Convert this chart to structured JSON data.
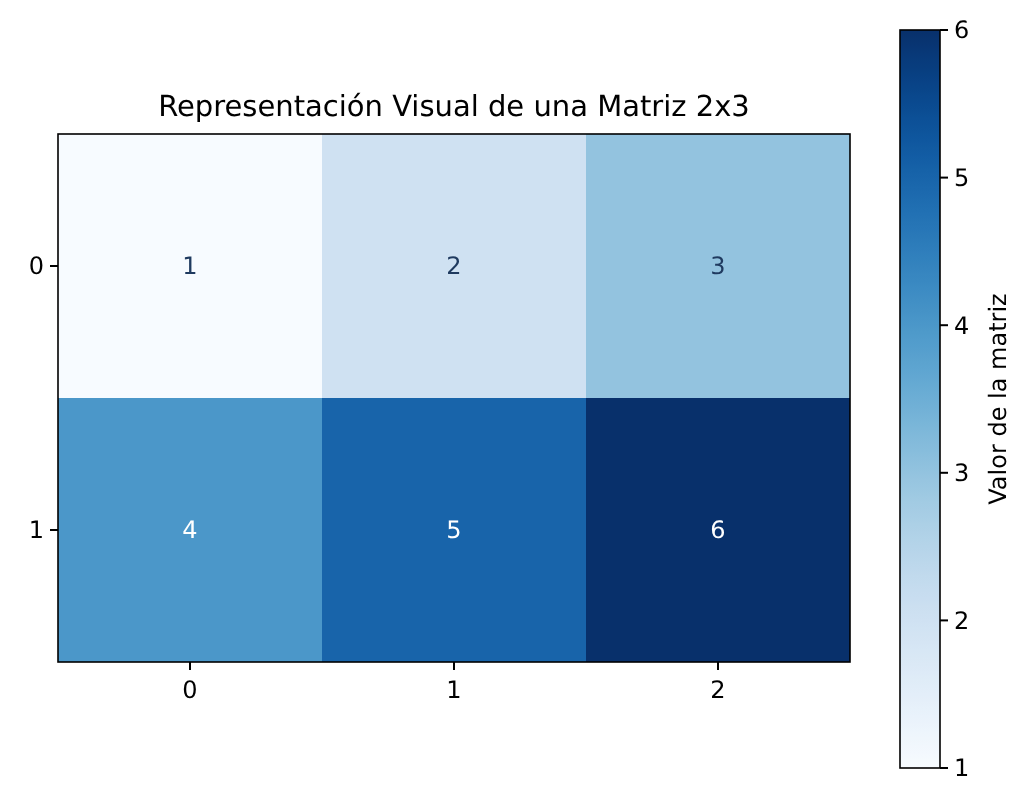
{
  "chart_data": {
    "type": "heatmap",
    "title": "Representación Visual de una Matriz 2x3",
    "clabel": "Valor de la matriz",
    "categories": [
      "0",
      "1",
      "2"
    ],
    "y_categories": [
      "0",
      "1"
    ],
    "cells": [
      [
        1,
        2,
        3
      ],
      [
        4,
        5,
        6
      ]
    ],
    "clim": [
      1,
      6
    ],
    "cticks": [
      1,
      2,
      3,
      4,
      5,
      6
    ],
    "data_labels": true
  }
}
